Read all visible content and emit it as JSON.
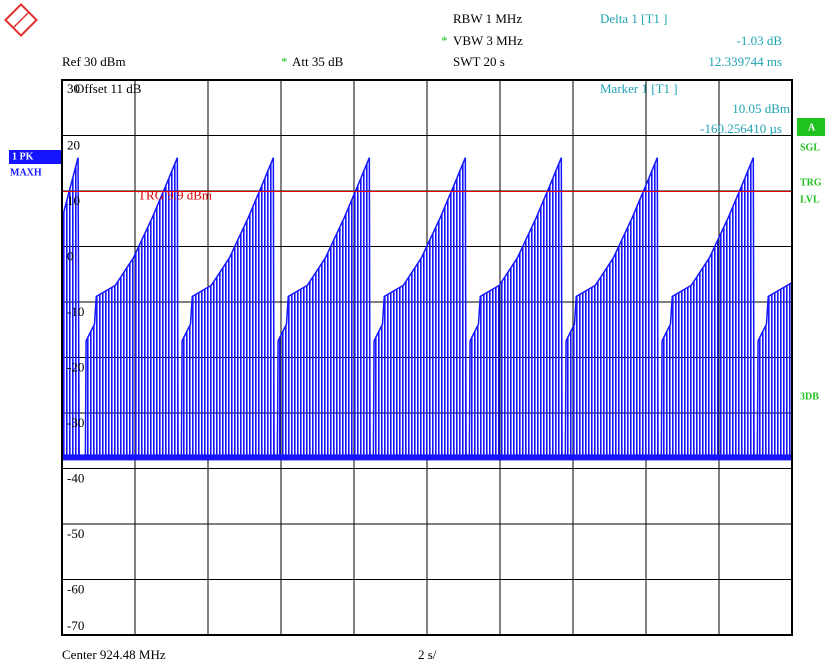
{
  "instrument": {
    "rbw": "RBW 1 MHz",
    "vbw_star": "*",
    "vbw": "VBW 3 MHz",
    "swt": "SWT 20 s",
    "delta_title": "Delta 1 [T1 ]",
    "delta_level": "-1.03 dB",
    "delta_time": "12.339744 ms",
    "ref": "Ref 30 dBm",
    "att_star": "*",
    "att": "Att 35 dB",
    "offset": "Offset 11 dB",
    "marker_title": "Marker 1 [T1 ]",
    "marker_level": "10.05 dBm",
    "marker_time": "-160.256410 µs",
    "trace_mode": "1 PK",
    "trace_detector": "MAXH",
    "side_a": "A",
    "side_sgl": "SGL",
    "side_trg": "TRG",
    "side_lvl": "LVL",
    "side_3db": "3DB",
    "center": "Center 924.48 MHz",
    "span": "2 s/"
  },
  "chart_data": {
    "type": "line",
    "x": [
      0,
      0.44,
      0.47,
      0.64,
      0.66,
      0.89,
      0.94,
      1.46,
      1.96,
      2.46,
      2.91,
      3.16,
      3.18,
      3.27,
      3.29,
      3.52,
      3.57,
      4.09,
      4.59,
      5.09,
      5.54,
      5.79,
      5.81,
      5.9,
      5.92,
      6.15,
      6.2,
      6.72,
      7.22,
      7.72,
      8.17,
      8.42,
      8.44,
      8.53,
      8.55,
      8.78,
      8.83,
      9.35,
      9.85,
      10.35,
      10.8,
      11.05,
      11.07,
      11.16,
      11.18,
      11.41,
      11.46,
      11.98,
      12.48,
      12.98,
      13.43,
      13.68,
      13.7,
      13.79,
      13.81,
      14.04,
      14.09,
      14.61,
      15.11,
      15.61,
      16.06,
      16.31,
      16.33,
      16.42,
      16.44,
      16.67,
      16.72,
      17.24,
      17.74,
      18.24,
      18.69,
      18.94,
      18.96,
      19.05,
      19.07,
      19.3,
      19.35,
      19.87,
      20
    ],
    "series": [
      {
        "name": "1 PK MAXH",
        "color": "#1414ff",
        "values": [
          5,
          16,
          -38,
          -38,
          -17,
          -14,
          -9,
          -7,
          -2,
          5,
          12,
          16,
          -38,
          -38,
          -17,
          -14,
          -9,
          -7,
          -2,
          5,
          12,
          16,
          -38,
          -38,
          -17,
          -14,
          -9,
          -7,
          -2,
          5,
          12,
          16,
          -38,
          -38,
          -17,
          -14,
          -9,
          -7,
          -2,
          5,
          12,
          16,
          -38,
          -38,
          -17,
          -14,
          -9,
          -7,
          -2,
          5,
          12,
          16,
          -38,
          -38,
          -17,
          -14,
          -9,
          -7,
          -2,
          5,
          12,
          16,
          -38,
          -38,
          -17,
          -14,
          -9,
          -7,
          -2,
          5,
          12,
          16,
          -38,
          -38,
          -17,
          -14,
          -9,
          -7,
          -6.5
        ]
      }
    ],
    "xlim": [
      0,
      20
    ],
    "xticks": [
      0,
      2,
      4,
      6,
      8,
      10,
      12,
      14,
      16,
      18,
      20
    ],
    "ylim": [
      -70,
      30
    ],
    "yticks": [
      30,
      20,
      10,
      0,
      -10,
      -20,
      -30,
      -40,
      -50,
      -60,
      -70
    ],
    "grid": true,
    "trigger": {
      "level": 9.9,
      "label": "TRG 9.9 dBm",
      "color": "#e00000"
    }
  }
}
